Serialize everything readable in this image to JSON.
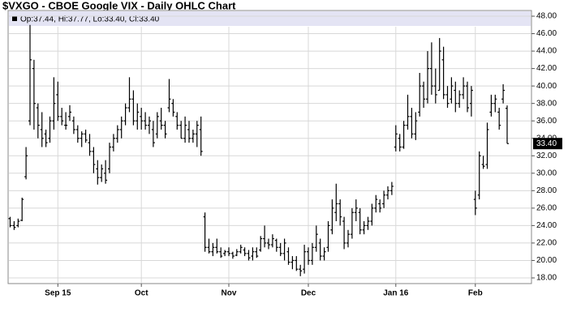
{
  "chart_data": {
    "type": "ohlc",
    "title": "$VXGO - CBOE Google VIX - Daily OHLC Chart",
    "info": "Op:37.44, Hi:37.77, Lo:33.40, Cl:33.40",
    "color": "#000000",
    "grid": true,
    "categories": [
      null,
      null,
      null,
      null,
      null,
      null,
      null,
      null,
      null,
      null,
      null,
      null,
      "Sep 15",
      null,
      null,
      null,
      null,
      null,
      null,
      null,
      null,
      null,
      null,
      null,
      null,
      null,
      null,
      null,
      null,
      null,
      null,
      null,
      null,
      "Oct",
      null,
      null,
      null,
      null,
      null,
      null,
      null,
      null,
      null,
      null,
      null,
      null,
      null,
      null,
      null,
      null,
      null,
      null,
      null,
      null,
      null,
      "Nov",
      null,
      null,
      null,
      null,
      null,
      null,
      null,
      null,
      null,
      null,
      null,
      null,
      null,
      null,
      null,
      null,
      null,
      null,
      null,
      "Dec",
      null,
      null,
      null,
      null,
      null,
      null,
      null,
      null,
      null,
      null,
      null,
      null,
      null,
      null,
      null,
      null,
      null,
      null,
      null,
      null,
      null,
      "Jan 16",
      null,
      null,
      null,
      null,
      null,
      null,
      null,
      null,
      null,
      null,
      null,
      null,
      null,
      null,
      null,
      null,
      null,
      null,
      null,
      "Feb",
      null,
      null,
      null,
      null,
      null,
      null,
      null,
      null
    ],
    "open": [
      24.8,
      24.0,
      24.0,
      24.6,
      29.6,
      36.0,
      42.0,
      37.5,
      35.0,
      34.5,
      34.0,
      36.0,
      39.0,
      36.5,
      35.5,
      36.5,
      36.0,
      35.0,
      34.0,
      34.5,
      33.5,
      32.5,
      30.5,
      29.5,
      30.0,
      30.5,
      33.0,
      34.0,
      35.0,
      36.0,
      37.5,
      38.5,
      36.0,
      36.5,
      36.0,
      35.5,
      35.0,
      34.5,
      36.0,
      35.5,
      37.5,
      38.0,
      36.5,
      35.5,
      34.0,
      35.0,
      34.0,
      34.5,
      35.0,
      25.0,
      21.5,
      21.0,
      21.5,
      21.0,
      20.8,
      21.0,
      20.8,
      20.6,
      21.0,
      21.2,
      20.8,
      20.5,
      21.0,
      21.2,
      22.5,
      22.0,
      21.8,
      22.3,
      21.5,
      20.8,
      21.0,
      19.8,
      20.0,
      19.0,
      19.0,
      21.0,
      20.0,
      21.5,
      22.0,
      20.5,
      21.5,
      23.5,
      25.5,
      26.5,
      24.5,
      22.0,
      23.0,
      25.5,
      25.5,
      23.5,
      24.0,
      24.5,
      26.0,
      26.5,
      26.5,
      27.5,
      28.0,
      33.0,
      34.0,
      33.0,
      35.5,
      36.5,
      34.5,
      37.0,
      40.0,
      38.5,
      42.0,
      40.0,
      39.5,
      43.0,
      39.0,
      38.5,
      39.5,
      38.0,
      39.0,
      40.0,
      38.0,
      27.0,
      27.5,
      31.0,
      31.0,
      37.0,
      38.0,
      37.0,
      38.5,
      37.44
    ],
    "high": [
      25.0,
      24.5,
      24.8,
      27.2,
      33.0,
      47.0,
      43.0,
      38.0,
      37.0,
      35.0,
      36.5,
      41.0,
      40.5,
      37.5,
      37.0,
      37.8,
      36.5,
      35.5,
      34.8,
      35.0,
      34.5,
      33.0,
      31.5,
      31.0,
      31.5,
      33.5,
      34.5,
      35.5,
      36.5,
      38.0,
      41.0,
      39.5,
      38.0,
      37.5,
      37.0,
      36.5,
      36.0,
      37.0,
      37.5,
      36.0,
      40.8,
      38.5,
      37.0,
      36.0,
      36.5,
      36.0,
      35.0,
      36.0,
      36.5,
      25.5,
      22.5,
      22.0,
      22.5,
      21.5,
      21.2,
      21.5,
      21.0,
      21.3,
      21.8,
      21.5,
      21.2,
      21.5,
      21.5,
      22.8,
      24.0,
      22.5,
      23.0,
      22.5,
      22.0,
      22.5,
      21.5,
      20.5,
      20.5,
      19.5,
      21.8,
      21.5,
      22.0,
      24.0,
      22.5,
      21.5,
      24.5,
      27.0,
      28.8,
      27.0,
      25.0,
      23.5,
      26.0,
      27.0,
      26.0,
      24.5,
      25.0,
      26.5,
      27.5,
      27.0,
      28.0,
      28.5,
      29.0,
      35.5,
      34.5,
      36.0,
      39.0,
      37.5,
      37.0,
      41.5,
      40.5,
      44.0,
      45.0,
      42.0,
      45.5,
      44.5,
      40.0,
      41.0,
      40.5,
      39.5,
      41.0,
      40.5,
      40.0,
      28.0,
      32.5,
      32.0,
      35.8,
      39.0,
      39.0,
      37.5,
      40.2,
      37.77
    ],
    "low": [
      23.8,
      23.5,
      23.8,
      24.5,
      29.3,
      35.5,
      35.0,
      34.0,
      33.0,
      33.0,
      33.5,
      35.0,
      36.0,
      35.5,
      35.0,
      36.0,
      34.5,
      33.5,
      33.0,
      33.5,
      32.0,
      30.0,
      28.7,
      29.0,
      28.8,
      30.0,
      32.5,
      33.5,
      34.0,
      35.5,
      37.0,
      35.5,
      35.0,
      35.0,
      35.0,
      34.5,
      33.0,
      34.0,
      35.0,
      34.0,
      37.0,
      36.5,
      35.0,
      34.0,
      33.5,
      33.5,
      33.5,
      33.0,
      32.0,
      21.0,
      20.8,
      20.5,
      20.8,
      20.3,
      20.5,
      20.5,
      20.2,
      20.5,
      20.8,
      20.5,
      20.0,
      20.0,
      20.3,
      21.0,
      21.5,
      21.3,
      21.5,
      21.0,
      20.5,
      20.0,
      19.5,
      19.0,
      18.8,
      18.2,
      18.5,
      19.5,
      19.5,
      21.0,
      20.0,
      20.0,
      21.0,
      23.0,
      24.5,
      24.0,
      21.3,
      21.5,
      22.5,
      24.5,
      23.0,
      23.0,
      23.5,
      24.0,
      25.5,
      25.5,
      26.0,
      27.0,
      27.5,
      32.5,
      32.5,
      32.8,
      35.0,
      34.0,
      33.8,
      36.5,
      37.5,
      38.0,
      39.0,
      38.0,
      39.5,
      38.5,
      37.5,
      38.0,
      37.0,
      37.5,
      38.5,
      37.0,
      36.5,
      25.2,
      27.0,
      30.5,
      30.5,
      36.5,
      37.0,
      35.0,
      38.0,
      33.4
    ],
    "close": [
      24.0,
      23.8,
      24.5,
      27.0,
      32.0,
      43.0,
      38.0,
      35.5,
      34.0,
      33.5,
      36.0,
      38.0,
      36.5,
      36.0,
      35.5,
      37.0,
      35.0,
      34.0,
      34.5,
      33.8,
      32.5,
      31.0,
      29.5,
      30.5,
      29.2,
      33.0,
      34.0,
      35.0,
      36.0,
      37.5,
      38.5,
      36.0,
      37.0,
      36.0,
      35.5,
      36.0,
      33.5,
      36.5,
      35.5,
      34.5,
      38.5,
      37.0,
      35.5,
      34.0,
      35.5,
      34.0,
      34.5,
      35.5,
      32.5,
      21.5,
      21.0,
      21.5,
      21.0,
      20.5,
      21.0,
      20.8,
      20.5,
      21.0,
      21.5,
      20.8,
      20.3,
      21.0,
      20.5,
      22.5,
      22.0,
      21.8,
      22.5,
      21.5,
      20.8,
      22.0,
      19.8,
      20.0,
      19.0,
      18.8,
      21.0,
      20.0,
      21.5,
      23.0,
      20.5,
      21.0,
      24.0,
      26.0,
      26.5,
      25.0,
      22.0,
      23.0,
      25.5,
      26.0,
      23.5,
      24.0,
      24.5,
      26.0,
      27.0,
      26.0,
      27.5,
      28.0,
      28.5,
      34.5,
      33.0,
      35.5,
      36.5,
      34.5,
      36.0,
      40.0,
      38.5,
      42.0,
      40.0,
      39.0,
      44.0,
      39.0,
      38.0,
      40.0,
      38.0,
      39.0,
      40.0,
      37.5,
      39.5,
      26.0,
      32.0,
      30.8,
      35.0,
      38.0,
      38.5,
      35.5,
      39.5,
      33.4
    ],
    "last_price": {
      "value": 33.4,
      "label": "33.40"
    },
    "ylim": [
      18,
      48
    ],
    "yticks": [
      {
        "value": 18,
        "label": "18.00"
      },
      {
        "value": 20,
        "label": "20.00"
      },
      {
        "value": 22,
        "label": "22.00"
      },
      {
        "value": 24,
        "label": "24.00"
      },
      {
        "value": 26,
        "label": "26.00"
      },
      {
        "value": 28,
        "label": "28.00"
      },
      {
        "value": 30,
        "label": "30.00"
      },
      {
        "value": 32,
        "label": "32.00"
      },
      {
        "value": 34,
        "label": "34.00"
      },
      {
        "value": 36,
        "label": "36.00"
      },
      {
        "value": 38,
        "label": "38.00"
      },
      {
        "value": 40,
        "label": "40.00"
      },
      {
        "value": 42,
        "label": "42.00"
      },
      {
        "value": 44,
        "label": "44.00"
      },
      {
        "value": 46,
        "label": "46.00"
      },
      {
        "value": 48,
        "label": "48.00"
      }
    ]
  }
}
